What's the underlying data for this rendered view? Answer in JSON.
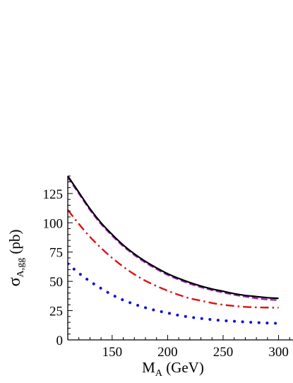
{
  "chart_data": {
    "type": "line",
    "title": "",
    "xlabel": {
      "symbol": "M",
      "subscript": "A",
      "unit": " (GeV)"
    },
    "ylabel": {
      "symbol": "σ",
      "subscript": "A,gg",
      "unit": " (pb)"
    },
    "xlim": [
      110,
      300
    ],
    "ylim": [
      0,
      140
    ],
    "xticks": [
      150,
      200,
      250,
      300
    ],
    "xtick_labels": [
      "150",
      "200",
      "250",
      "300"
    ],
    "yticks": [
      0,
      25,
      50,
      75,
      100,
      125
    ],
    "ytick_labels": [
      "0",
      "25",
      "50",
      "75",
      "100",
      "125"
    ],
    "grid": false,
    "legend": "none",
    "series": [
      {
        "style": "solid",
        "color": "#000000",
        "x": [
          110,
          120,
          130,
          140,
          150,
          160,
          170,
          180,
          190,
          200,
          210,
          220,
          230,
          240,
          250,
          260,
          270,
          280,
          290,
          300
        ],
        "y": [
          140,
          126,
          112,
          100,
          90,
          81,
          73.5,
          67,
          61.5,
          56.5,
          52.5,
          49,
          46,
          43.5,
          41.5,
          39.5,
          38,
          37,
          36,
          35.5
        ]
      },
      {
        "style": "dashed",
        "color": "#a020c0",
        "x": [
          110,
          120,
          130,
          140,
          150,
          160,
          170,
          180,
          190,
          200,
          210,
          220,
          230,
          240,
          250,
          260,
          270,
          280,
          290,
          300
        ],
        "y": [
          139,
          125,
          111,
          99,
          89,
          80,
          72.5,
          66,
          60.5,
          55.5,
          51.5,
          48,
          45,
          42.5,
          40.5,
          38.5,
          37,
          35.5,
          34.5,
          34
        ]
      },
      {
        "style": "dashdot",
        "color": "#e01010",
        "x": [
          110,
          120,
          130,
          140,
          150,
          160,
          170,
          180,
          190,
          200,
          210,
          220,
          230,
          240,
          250,
          260,
          270,
          280,
          290,
          300
        ],
        "y": [
          111,
          99,
          88,
          78.5,
          70,
          62.5,
          56,
          50.5,
          46,
          42,
          38.5,
          35.5,
          33.5,
          31.5,
          30,
          29,
          28.2,
          27.8,
          27.6,
          27.5
        ]
      },
      {
        "style": "dotted",
        "color": "#1010e0",
        "x": [
          110,
          120,
          130,
          140,
          150,
          160,
          170,
          180,
          190,
          200,
          210,
          220,
          230,
          240,
          250,
          260,
          270,
          280,
          290,
          300
        ],
        "y": [
          65,
          57,
          50,
          44,
          38.5,
          34,
          30.5,
          27.5,
          25,
          23,
          21,
          19.5,
          18.3,
          17.3,
          16.5,
          15.9,
          15.3,
          14.8,
          14.4,
          14.1
        ]
      }
    ]
  }
}
